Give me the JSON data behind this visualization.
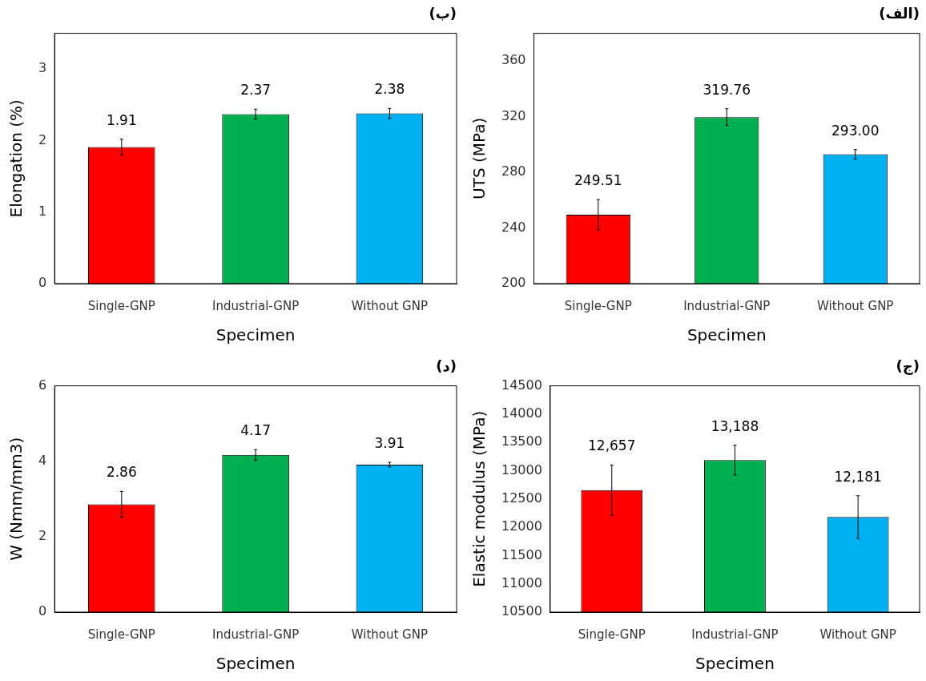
{
  "chart_data": [
    {
      "type": "bar",
      "title": "(ب)",
      "xlabel": "Specimen",
      "ylabel": "Elongation (%)",
      "categories": [
        "Single-GNP",
        "Industrial-GNP",
        "Without GNP"
      ],
      "values": [
        1.91,
        2.37,
        2.38
      ],
      "colors": [
        "#ff0000",
        "#00b050",
        "#00b0f0"
      ],
      "errors": [
        0.11,
        0.07,
        0.07
      ],
      "value_labels": [
        "1.91",
        "2.37",
        "2.38"
      ],
      "ylim": [
        0,
        3.5
      ],
      "yticks": [
        0,
        1,
        2,
        3
      ],
      "grid": false,
      "legend": false
    },
    {
      "type": "bar",
      "title": "(الف)",
      "xlabel": "Specimen",
      "ylabel": "UTS (MPa)",
      "categories": [
        "Single-GNP",
        "Industrial-GNP",
        "Without GNP"
      ],
      "values": [
        249.51,
        319.76,
        293.0
      ],
      "colors": [
        "#ff0000",
        "#00b050",
        "#00b0f0"
      ],
      "errors": [
        11,
        6,
        3.4
      ],
      "value_labels": [
        "249.51",
        "319.76",
        "293.00"
      ],
      "ylim": [
        200,
        380
      ],
      "yticks": [
        200,
        240,
        280,
        320,
        360
      ],
      "grid": false,
      "legend": false
    },
    {
      "type": "bar",
      "title": "(د)",
      "xlabel": "Specimen",
      "ylabel": "W (Nmm/mm3)",
      "categories": [
        "Single-GNP",
        "Industrial-GNP",
        "Without GNP"
      ],
      "values": [
        2.86,
        4.17,
        3.91
      ],
      "colors": [
        "#ff0000",
        "#00b050",
        "#00b0f0"
      ],
      "errors": [
        0.34,
        0.14,
        0.06
      ],
      "value_labels": [
        "2.86",
        "4.17",
        "3.91"
      ],
      "ylim": [
        0,
        6
      ],
      "yticks": [
        0,
        2,
        4,
        6
      ],
      "grid": false,
      "legend": false
    },
    {
      "type": "bar",
      "title": "(ج)",
      "xlabel": "Specimen",
      "ylabel": "Elastic modulus (MPa)",
      "categories": [
        "Single-GNP",
        "Industrial-GNP",
        "Without GNP"
      ],
      "values": [
        12657,
        13188,
        12181
      ],
      "colors": [
        "#ff0000",
        "#00b050",
        "#00b0f0"
      ],
      "errors": [
        444,
        262,
        376
      ],
      "value_labels": [
        "12,657",
        "13,188",
        "12,181"
      ],
      "ylim": [
        10500,
        14500
      ],
      "yticks": [
        10500,
        11000,
        11500,
        12000,
        12500,
        13000,
        13500,
        14000,
        14500
      ],
      "grid": false,
      "legend": false
    }
  ]
}
